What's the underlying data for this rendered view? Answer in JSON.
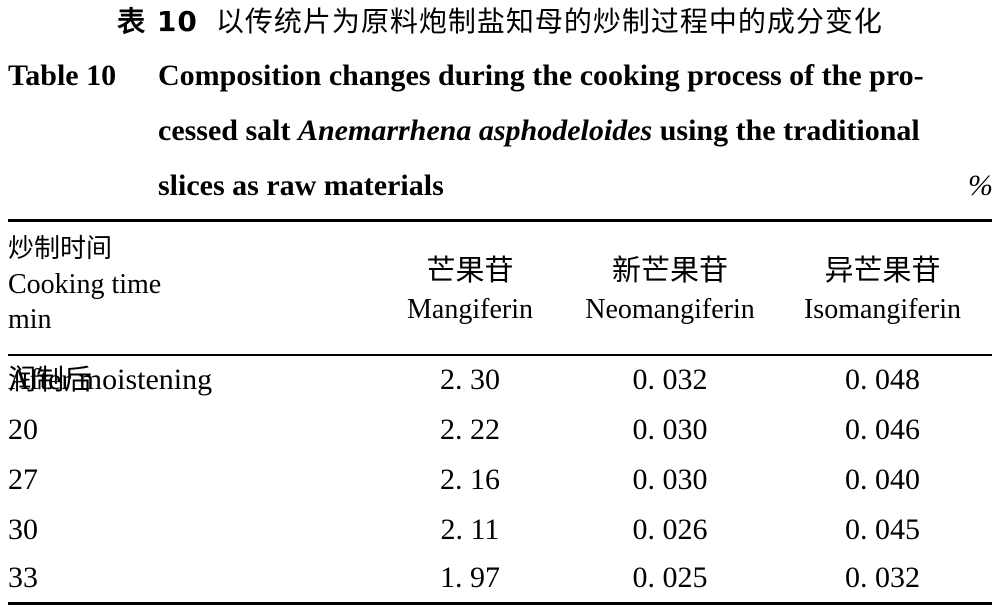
{
  "caption": {
    "cn_number": "表 10",
    "cn_text": "以传统片为原料炮制盐知母的炒制过程中的成分变化",
    "en_label": "Table 10",
    "en_text_1": "Composition changes during the cooking process of the pro-",
    "en_text_2a": "cessed salt ",
    "en_text_2b": "Anemarrhena asphodeloides",
    "en_text_2c": " using the traditional",
    "en_text_3": "slices as raw materials",
    "unit": "%"
  },
  "header": {
    "first": {
      "cn": "炒制时间",
      "en": "Cooking time",
      "unit": "min"
    },
    "columns": [
      {
        "cn": "芒果苷",
        "en": "Mangiferin"
      },
      {
        "cn": "新芒果苷",
        "en": "Neomangiferin"
      },
      {
        "cn": "异芒果苷",
        "en": "Isomangiferin"
      }
    ]
  },
  "rows": [
    {
      "time_cn": "润制后",
      "time": " After moistening",
      "mangiferin": "2. 30",
      "neomangiferin": "0. 032",
      "isomangiferin": "0. 048"
    },
    {
      "time_cn": "",
      "time": "20",
      "mangiferin": "2. 22",
      "neomangiferin": "0. 030",
      "isomangiferin": "0. 046"
    },
    {
      "time_cn": "",
      "time": "27",
      "mangiferin": "2. 16",
      "neomangiferin": "0. 030",
      "isomangiferin": "0. 040"
    },
    {
      "time_cn": "",
      "time": "30",
      "mangiferin": "2. 11",
      "neomangiferin": "0. 026",
      "isomangiferin": "0. 045"
    },
    {
      "time_cn": "",
      "time": "33",
      "mangiferin": "1. 97",
      "neomangiferin": "0. 025",
      "isomangiferin": "0. 032"
    }
  ]
}
